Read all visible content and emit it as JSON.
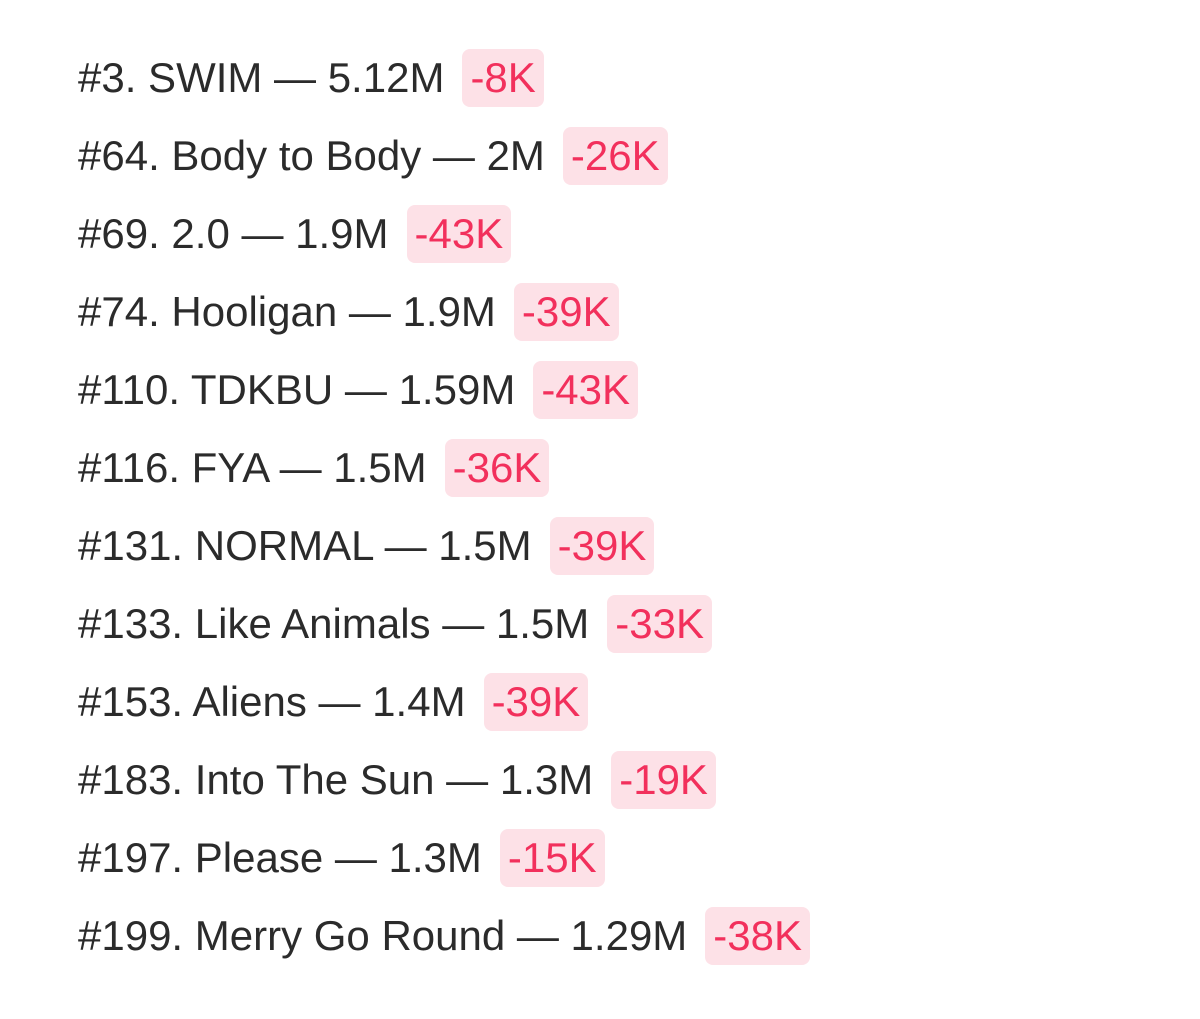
{
  "list": {
    "rows": [
      {
        "text": "#3. SWIM — 5.12M",
        "change": "-8K"
      },
      {
        "text": "#64. Body to Body — 2M",
        "change": "-26K"
      },
      {
        "text": "#69. 2.0 — 1.9M",
        "change": "-43K"
      },
      {
        "text": "#74. Hooligan — 1.9M",
        "change": "-39K"
      },
      {
        "text": "#110. TDKBU — 1.59M",
        "change": "-43K"
      },
      {
        "text": "#116. FYA — 1.5M",
        "change": "-36K"
      },
      {
        "text": "#131. NORMAL — 1.5M",
        "change": "-39K"
      },
      {
        "text": "#133. Like Animals — 1.5M",
        "change": "-33K"
      },
      {
        "text": "#153. Aliens — 1.4M",
        "change": "-39K"
      },
      {
        "text": "#183. Into The Sun — 1.3M",
        "change": "-19K"
      },
      {
        "text": "#197. Please — 1.3M",
        "change": "-15K"
      },
      {
        "text": "#199. Merry Go Round — 1.29M",
        "change": "-38K"
      }
    ]
  }
}
